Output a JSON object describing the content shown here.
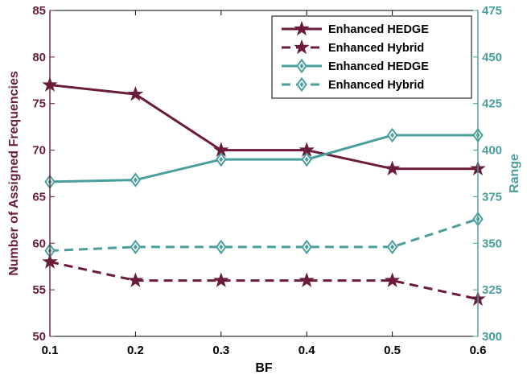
{
  "colors": {
    "left_axis": "#6b1c3a",
    "right_axis": "#4a9e9c",
    "axis_black": "#000000"
  },
  "chart_data": {
    "type": "line",
    "xlabel": "BF",
    "ylabel_left": "Number of Assigned Frequencies",
    "ylabel_right": "Range",
    "x": [
      0.1,
      0.2,
      0.3,
      0.4,
      0.5,
      0.6
    ],
    "x_ticks": [
      "0.1",
      "0.2",
      "0.3",
      "0.4",
      "0.5",
      "0.6"
    ],
    "xlim": [
      0.1,
      0.6
    ],
    "ylim_left": [
      50,
      85
    ],
    "ylim_right": [
      300,
      475
    ],
    "left_ticks": [
      "50",
      "55",
      "60",
      "65",
      "70",
      "75",
      "80",
      "85"
    ],
    "right_ticks": [
      "300",
      "325",
      "350",
      "375",
      "400",
      "425",
      "450",
      "475"
    ],
    "grid": false,
    "legend_position": "top-right",
    "series": [
      {
        "name": "Enhanced HEDGE",
        "axis": "left",
        "color": "#6b1c3a",
        "line": "solid",
        "marker": "star",
        "values": [
          77,
          76,
          70,
          70,
          68,
          68
        ]
      },
      {
        "name": "Enhanced Hybrid",
        "axis": "left",
        "color": "#6b1c3a",
        "line": "dashed",
        "marker": "star",
        "values": [
          58,
          56,
          56,
          56,
          56,
          54
        ]
      },
      {
        "name": "Enhanced HEDGE",
        "axis": "right",
        "color": "#4a9e9c",
        "line": "solid",
        "marker": "diamond",
        "values": [
          383,
          384,
          395,
          395,
          408,
          408
        ]
      },
      {
        "name": "Enhanced Hybrid",
        "axis": "right",
        "color": "#4a9e9c",
        "line": "dashed",
        "marker": "diamond",
        "values": [
          346,
          348,
          348,
          348,
          348,
          363
        ]
      }
    ]
  }
}
